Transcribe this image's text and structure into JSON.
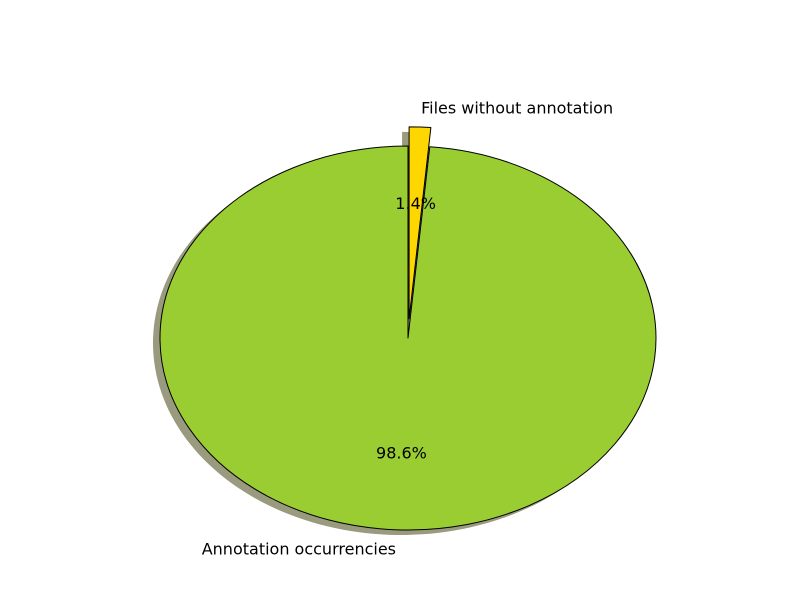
{
  "chart_data": {
    "type": "pie",
    "title": "",
    "start_angle_deg": 90,
    "shadow": true,
    "slices": [
      {
        "label": "Annotation occurrencies",
        "value": 98.6,
        "pct_text": "98.6%",
        "color": "#9acd32",
        "exploded": false
      },
      {
        "label": "Files without annotation",
        "value": 1.4,
        "pct_text": "1.4%",
        "color": "#ffd700",
        "exploded": true
      }
    ],
    "edge_color": "#000000",
    "shadow_color": "#9a9a7e"
  }
}
